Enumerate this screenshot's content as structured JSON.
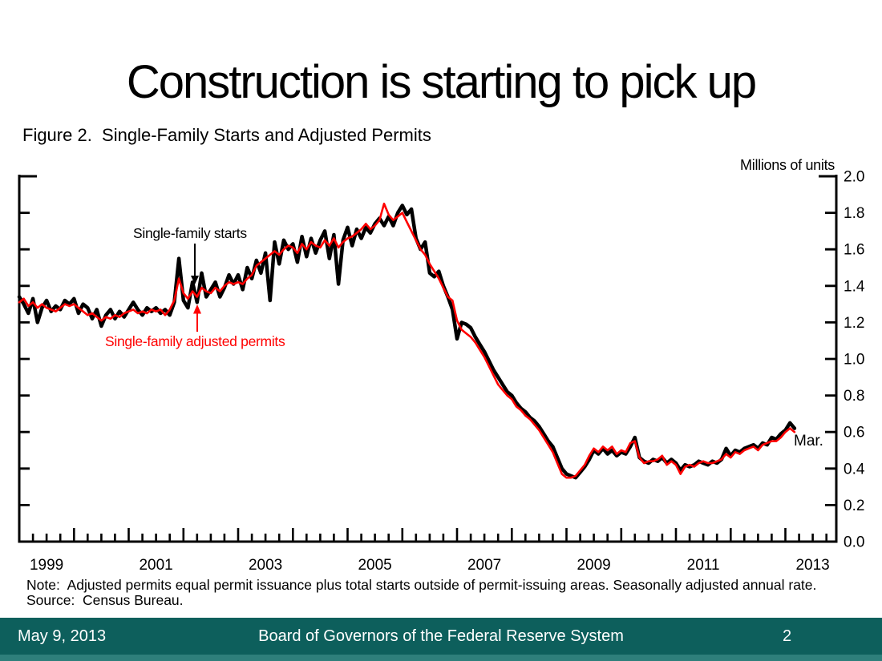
{
  "slide": {
    "title": "Construction is starting to pick up",
    "note": "Note:  Adjusted permits equal permit issuance plus total starts outside of permit-issuing areas. Seasonally adjusted annual rate.",
    "source": "Source:  Census Bureau.",
    "footer": {
      "date": "May 9, 2013",
      "organization": "Board of Governors of the Federal Reserve System",
      "page_number": "2",
      "bar_color": "#0d5f5c",
      "accent_strip_color": "#2e7f7b",
      "text_color": "#ffffff"
    }
  },
  "chart_data": {
    "type": "line",
    "title": "Figure 2.  Single-Family Starts and Adjusted Permits",
    "unit_label": "Millions of units",
    "end_label": "Mar.",
    "x_start": "1999-01",
    "x_end": "2013-03",
    "x_frequency": "monthly",
    "x_major_tick": "yearly",
    "x_minor_tick": "quarterly",
    "x_tick_label_years": [
      1999,
      2001,
      2003,
      2005,
      2007,
      2009,
      2011,
      2013
    ],
    "ylim": [
      0.0,
      2.0
    ],
    "y_tick_step": 0.2,
    "y_tick_labels": [
      "0.0",
      "0.2",
      "0.4",
      "0.6",
      "0.8",
      "1.0",
      "1.2",
      "1.4",
      "1.6",
      "1.8",
      "2.0"
    ],
    "axis_color": "#000000",
    "legend_position": "in-plot annotations with arrows",
    "grid": false,
    "series": [
      {
        "name": "Single-family starts",
        "color": "#000000",
        "stroke_width": 4.5,
        "values": [
          1.34,
          1.3,
          1.25,
          1.33,
          1.2,
          1.28,
          1.32,
          1.26,
          1.29,
          1.27,
          1.32,
          1.3,
          1.33,
          1.25,
          1.3,
          1.28,
          1.22,
          1.27,
          1.18,
          1.24,
          1.27,
          1.22,
          1.26,
          1.23,
          1.27,
          1.31,
          1.27,
          1.24,
          1.28,
          1.26,
          1.28,
          1.25,
          1.27,
          1.24,
          1.31,
          1.55,
          1.32,
          1.28,
          1.42,
          1.31,
          1.47,
          1.34,
          1.38,
          1.42,
          1.34,
          1.39,
          1.46,
          1.41,
          1.46,
          1.38,
          1.5,
          1.44,
          1.54,
          1.47,
          1.58,
          1.32,
          1.64,
          1.52,
          1.65,
          1.6,
          1.63,
          1.53,
          1.67,
          1.56,
          1.66,
          1.58,
          1.65,
          1.7,
          1.55,
          1.68,
          1.41,
          1.65,
          1.72,
          1.62,
          1.71,
          1.66,
          1.72,
          1.69,
          1.74,
          1.77,
          1.73,
          1.78,
          1.73,
          1.8,
          1.84,
          1.79,
          1.82,
          1.66,
          1.6,
          1.64,
          1.47,
          1.45,
          1.48,
          1.4,
          1.34,
          1.27,
          1.11,
          1.2,
          1.19,
          1.17,
          1.12,
          1.08,
          1.04,
          0.99,
          0.94,
          0.9,
          0.86,
          0.82,
          0.8,
          0.76,
          0.73,
          0.71,
          0.68,
          0.66,
          0.63,
          0.59,
          0.55,
          0.52,
          0.46,
          0.4,
          0.37,
          0.36,
          0.35,
          0.38,
          0.41,
          0.45,
          0.5,
          0.48,
          0.51,
          0.48,
          0.5,
          0.47,
          0.49,
          0.48,
          0.52,
          0.57,
          0.46,
          0.44,
          0.43,
          0.45,
          0.44,
          0.46,
          0.43,
          0.45,
          0.43,
          0.39,
          0.42,
          0.41,
          0.42,
          0.44,
          0.43,
          0.42,
          0.44,
          0.43,
          0.45,
          0.51,
          0.47,
          0.5,
          0.49,
          0.51,
          0.52,
          0.53,
          0.51,
          0.54,
          0.53,
          0.57,
          0.56,
          0.59,
          0.61,
          0.65,
          0.62
        ]
      },
      {
        "name": "Single-family adjusted permits",
        "color": "#ff0000",
        "stroke_width": 2.6,
        "values": [
          1.31,
          1.33,
          1.29,
          1.31,
          1.28,
          1.3,
          1.28,
          1.27,
          1.26,
          1.28,
          1.3,
          1.29,
          1.3,
          1.28,
          1.26,
          1.24,
          1.25,
          1.23,
          1.21,
          1.23,
          1.22,
          1.24,
          1.23,
          1.25,
          1.26,
          1.27,
          1.25,
          1.26,
          1.25,
          1.27,
          1.26,
          1.27,
          1.24,
          1.27,
          1.32,
          1.44,
          1.36,
          1.33,
          1.37,
          1.34,
          1.39,
          1.37,
          1.36,
          1.39,
          1.37,
          1.4,
          1.42,
          1.41,
          1.42,
          1.41,
          1.44,
          1.46,
          1.51,
          1.53,
          1.55,
          1.57,
          1.59,
          1.57,
          1.6,
          1.62,
          1.61,
          1.58,
          1.63,
          1.6,
          1.64,
          1.62,
          1.61,
          1.65,
          1.62,
          1.66,
          1.61,
          1.64,
          1.66,
          1.67,
          1.69,
          1.71,
          1.74,
          1.71,
          1.73,
          1.76,
          1.85,
          1.79,
          1.76,
          1.78,
          1.8,
          1.75,
          1.7,
          1.65,
          1.6,
          1.57,
          1.52,
          1.48,
          1.44,
          1.39,
          1.34,
          1.32,
          1.21,
          1.16,
          1.14,
          1.12,
          1.09,
          1.05,
          1.01,
          0.96,
          0.91,
          0.86,
          0.83,
          0.8,
          0.78,
          0.74,
          0.72,
          0.69,
          0.67,
          0.64,
          0.61,
          0.57,
          0.53,
          0.49,
          0.43,
          0.37,
          0.35,
          0.35,
          0.36,
          0.39,
          0.42,
          0.47,
          0.51,
          0.49,
          0.52,
          0.5,
          0.52,
          0.48,
          0.5,
          0.49,
          0.54,
          0.55,
          0.46,
          0.43,
          0.44,
          0.44,
          0.45,
          0.47,
          0.42,
          0.44,
          0.42,
          0.37,
          0.41,
          0.42,
          0.41,
          0.43,
          0.44,
          0.43,
          0.43,
          0.44,
          0.45,
          0.48,
          0.46,
          0.49,
          0.48,
          0.5,
          0.51,
          0.52,
          0.5,
          0.53,
          0.54,
          0.55,
          0.55,
          0.57,
          0.6,
          0.62,
          0.6
        ]
      }
    ]
  }
}
